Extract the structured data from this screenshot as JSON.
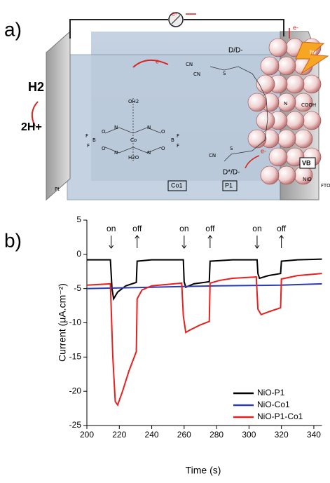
{
  "diagram": {
    "panel_label": "a)",
    "labels": [
      "e-",
      "e-",
      "e-",
      "D/D-",
      "hν",
      "H2",
      "2H+",
      "COOH",
      "VB",
      "NiO",
      "FTO",
      "Pt",
      "Co1",
      "P1",
      "D*/D-",
      "e-",
      "OH2",
      "H2O",
      "Co",
      "N",
      "N",
      "N",
      "N",
      "O",
      "O",
      "O",
      "O",
      "B",
      "B",
      "F",
      "F",
      "F",
      "F",
      "S",
      "S",
      "N",
      "CN",
      "CN",
      "CN"
    ]
  },
  "chart_data": {
    "type": "line",
    "panel_label": "b)",
    "xlabel": "Time (s)",
    "ylabel": "Current (μA.cm⁻²)",
    "xlim": [
      200,
      345
    ],
    "xticks": [
      200,
      220,
      240,
      260,
      280,
      300,
      320,
      340
    ],
    "ylim": [
      -25,
      5
    ],
    "yticks": [
      -25,
      -20,
      -15,
      -10,
      -5,
      0,
      5
    ],
    "series": [
      {
        "name": "NiO-P1",
        "color": "#000000",
        "x": [
          200,
          214.5,
          215.5,
          216.5,
          219,
          224,
          230.5,
          231,
          240,
          259.5,
          260,
          261,
          266,
          275.5,
          276,
          290,
          305,
          305.5,
          306.5,
          312,
          319.5,
          320,
          330,
          345
        ],
        "values": [
          -0.8,
          -0.8,
          -5,
          -6.5,
          -5.5,
          -4.6,
          -4.1,
          -1,
          -0.8,
          -0.8,
          -4,
          -4.8,
          -4.3,
          -4,
          -1,
          -0.8,
          -0.8,
          -2.8,
          -3.5,
          -3.1,
          -2.8,
          -1,
          -0.8,
          -0.7
        ]
      },
      {
        "name": "NiO-Co1",
        "color": "#2a3cb0",
        "x": [
          200,
          240,
          280,
          320,
          345
        ],
        "values": [
          -5,
          -4.8,
          -4.6,
          -4.5,
          -4.3
        ]
      },
      {
        "name": "NiO-P1-Co1",
        "color": "#e8201e",
        "x": [
          200,
          214.5,
          216,
          217.5,
          219,
          222,
          226,
          230.5,
          231,
          234,
          240,
          258.5,
          259.5,
          261,
          264,
          270,
          275.5,
          276,
          282,
          290,
          304.5,
          305.5,
          307.5,
          312,
          319.5,
          320,
          330,
          345
        ],
        "values": [
          -4.5,
          -4.3,
          -15,
          -21.5,
          -22,
          -20,
          -17,
          -14.2,
          -6.5,
          -5.2,
          -4.6,
          -4.2,
          -9,
          -11.4,
          -11,
          -10.3,
          -9.8,
          -4.2,
          -3.8,
          -3.5,
          -3.3,
          -8,
          -8.8,
          -8.4,
          -7.8,
          -3.6,
          -3.1,
          -2.8
        ]
      }
    ],
    "annotations": [
      {
        "text": "on",
        "x": 215
      },
      {
        "text": "off",
        "x": 231
      },
      {
        "text": "on",
        "x": 260
      },
      {
        "text": "off",
        "x": 276
      },
      {
        "text": "on",
        "x": 305
      },
      {
        "text": "off",
        "x": 320
      }
    ]
  }
}
